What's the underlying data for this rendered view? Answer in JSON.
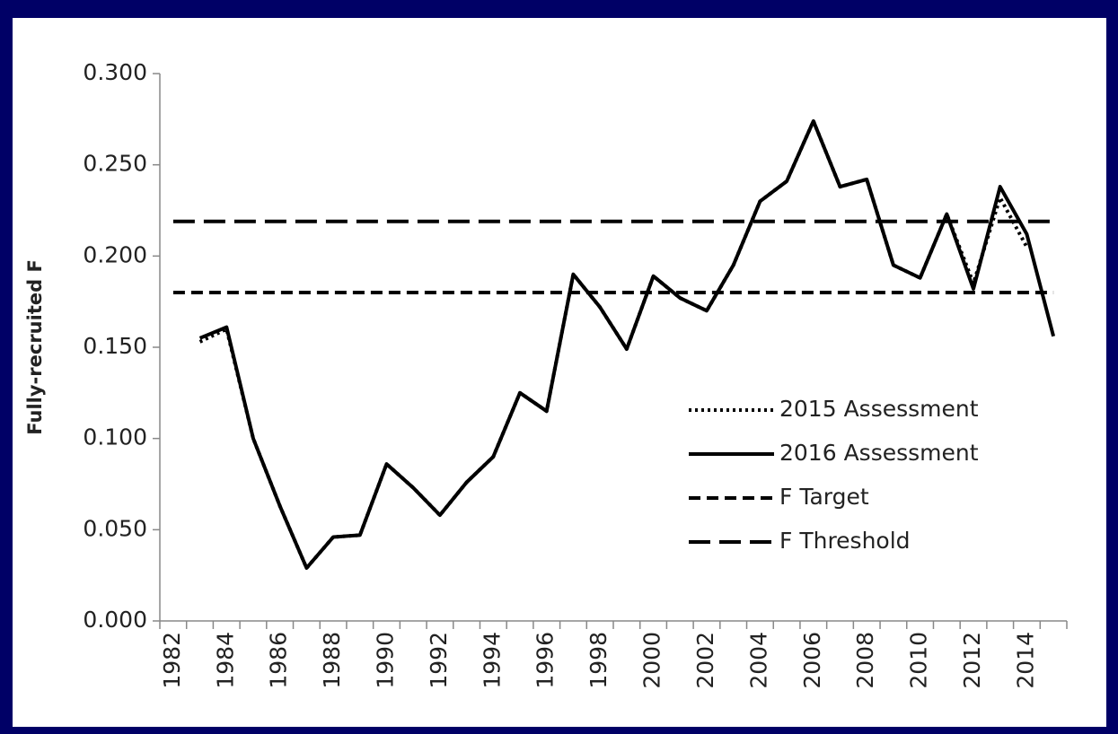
{
  "chart_data": {
    "type": "line",
    "y_label": "Fully-recruited F",
    "categories": [
      "1982",
      null,
      "1984",
      null,
      "1986",
      null,
      "1988",
      null,
      "1990",
      null,
      "1992",
      null,
      "1994",
      null,
      "1996",
      null,
      "1998",
      null,
      "2000",
      null,
      "2002",
      null,
      "2004",
      null,
      "2006",
      null,
      "2008",
      null,
      "2010",
      null,
      "2012",
      null,
      "2014",
      null
    ],
    "series": [
      {
        "name": "2015 Assessment",
        "color": "#000000",
        "style": "dotted",
        "values": [
          null,
          0.153,
          0.16,
          0.1,
          0.063,
          0.029,
          0.046,
          0.047,
          0.086,
          0.073,
          0.058,
          0.076,
          0.09,
          0.125,
          0.115,
          0.19,
          0.172,
          0.149,
          0.189,
          0.177,
          0.17,
          0.195,
          0.23,
          0.241,
          0.274,
          0.238,
          0.242,
          0.195,
          0.188,
          0.223,
          0.185,
          0.232,
          0.205,
          null
        ]
      },
      {
        "name": "2016 Assessment",
        "color": "#000000",
        "style": "solid",
        "values": [
          null,
          0.155,
          0.161,
          0.1,
          0.063,
          0.029,
          0.046,
          0.047,
          0.086,
          0.073,
          0.058,
          0.076,
          0.09,
          0.125,
          0.115,
          0.19,
          0.172,
          0.149,
          0.189,
          0.177,
          0.17,
          0.195,
          0.23,
          0.241,
          0.274,
          0.238,
          0.242,
          0.195,
          0.188,
          0.223,
          0.182,
          0.238,
          0.212,
          0.156
        ]
      },
      {
        "name": "F Target",
        "color": "#000000",
        "style": "short-dash",
        "values": [
          0.18,
          0.18,
          0.18,
          0.18,
          0.18,
          0.18,
          0.18,
          0.18,
          0.18,
          0.18,
          0.18,
          0.18,
          0.18,
          0.18,
          0.18,
          0.18,
          0.18,
          0.18,
          0.18,
          0.18,
          0.18,
          0.18,
          0.18,
          0.18,
          0.18,
          0.18,
          0.18,
          0.18,
          0.18,
          0.18,
          0.18,
          0.18,
          0.18,
          0.18
        ]
      },
      {
        "name": "F Threshold",
        "color": "#000000",
        "style": "long-dash",
        "values": [
          0.219,
          0.219,
          0.219,
          0.219,
          0.219,
          0.219,
          0.219,
          0.219,
          0.219,
          0.219,
          0.219,
          0.219,
          0.219,
          0.219,
          0.219,
          0.219,
          0.219,
          0.219,
          0.219,
          0.219,
          0.219,
          0.219,
          0.219,
          0.219,
          0.219,
          0.219,
          0.219,
          0.219,
          0.219,
          0.219,
          0.219,
          0.219,
          0.219,
          0.219
        ]
      }
    ],
    "ylim": [
      0,
      0.3
    ],
    "yticks": [
      {
        "value": 0,
        "label": "0.000"
      },
      {
        "value": 0.05,
        "label": "0.050"
      },
      {
        "value": 0.1,
        "label": "0.100"
      },
      {
        "value": 0.15,
        "label": "0.150"
      },
      {
        "value": 0.2,
        "label": "0.200"
      },
      {
        "value": 0.25,
        "label": "0.250"
      },
      {
        "value": 0.3,
        "label": "0.300"
      }
    ],
    "grid": false
  }
}
